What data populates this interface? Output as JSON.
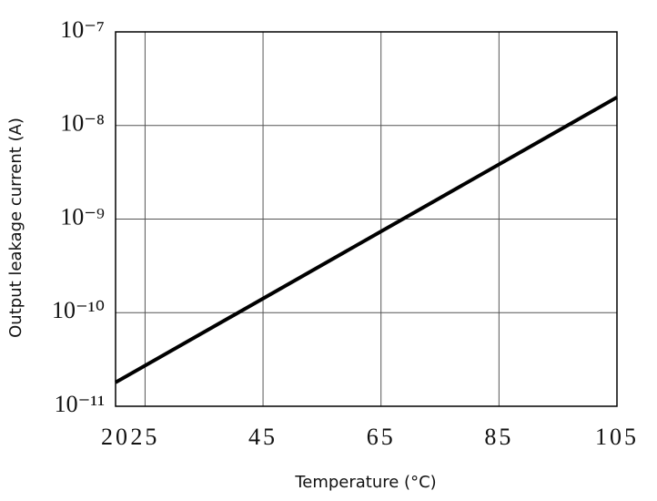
{
  "chart_data": {
    "type": "line",
    "x_label": "Temperature (°C)",
    "y_label": "Output leakage current (A)",
    "x": [
      20,
      105
    ],
    "series": [
      {
        "name": "Output leakage current",
        "color": "#000000",
        "values": [
          1.8e-11,
          2e-08
        ]
      }
    ],
    "xlim": [
      20,
      105
    ],
    "ylim": [
      1e-11,
      1e-07
    ],
    "xticks": [
      20,
      25,
      45,
      65,
      85,
      105
    ],
    "yticks": [
      {
        "value": 1e-07,
        "label": "10⁻⁷"
      },
      {
        "value": 1e-08,
        "label": "10⁻⁸"
      },
      {
        "value": 1e-09,
        "label": "10⁻⁹"
      },
      {
        "value": 1e-10,
        "label": "10⁻¹⁰"
      },
      {
        "value": 1e-11,
        "label": "10⁻¹¹"
      }
    ],
    "y_scale": "log",
    "grid": true
  }
}
